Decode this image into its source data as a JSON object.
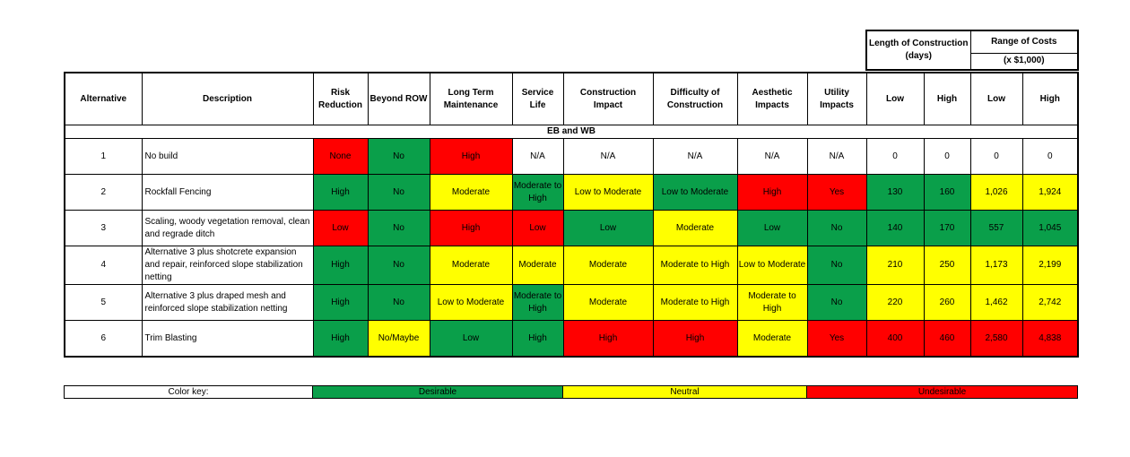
{
  "colors": {
    "g": "#0a9f4a",
    "y": "#ffff00",
    "r": "#ff0000",
    "w": "#ffffff"
  },
  "top": {
    "length": "Length of Construction (days)",
    "costs": "Range of Costs",
    "costs_unit": "(x $1,000)"
  },
  "headers": [
    "Alternative",
    "Description",
    "Risk Reduction",
    "Beyond ROW",
    "Long Term Maintenance",
    "Service Life",
    "Construction Impact",
    "Difficulty of Construction",
    "Aesthetic Impacts",
    "Utility Impacts",
    "Low",
    "High",
    "Low",
    "High"
  ],
  "section": "EB and WB",
  "rows": [
    {
      "cells": [
        "1",
        "No build",
        "None",
        "No",
        "High",
        "N/A",
        "N/A",
        "N/A",
        "N/A",
        "N/A",
        "0",
        "0",
        "0",
        "0"
      ],
      "colors": [
        "w",
        "w",
        "r",
        "g",
        "r",
        "w",
        "w",
        "w",
        "w",
        "w",
        "w",
        "w",
        "w",
        "w"
      ]
    },
    {
      "cells": [
        "2",
        "Rockfall Fencing",
        "High",
        "No",
        "Moderate",
        "Moderate to High",
        "Low to Moderate",
        "Low to Moderate",
        "High",
        "Yes",
        "130",
        "160",
        "1,026",
        "1,924"
      ],
      "colors": [
        "w",
        "w",
        "g",
        "g",
        "y",
        "g",
        "y",
        "g",
        "r",
        "r",
        "g",
        "g",
        "y",
        "y"
      ]
    },
    {
      "cells": [
        "3",
        "Scaling, woody vegetation removal, clean and regrade ditch",
        "Low",
        "No",
        "High",
        "Low",
        "Low",
        "Moderate",
        "Low",
        "No",
        "140",
        "170",
        "557",
        "1,045"
      ],
      "colors": [
        "w",
        "w",
        "r",
        "g",
        "r",
        "r",
        "g",
        "y",
        "g",
        "g",
        "g",
        "g",
        "g",
        "g"
      ]
    },
    {
      "cells": [
        "4",
        "Alternative 3 plus shotcrete expansion and repair, reinforced slope stabilization netting",
        "High",
        "No",
        "Moderate",
        "Moderate",
        "Moderate",
        "Moderate to High",
        "Low to Moderate",
        "No",
        "210",
        "250",
        "1,173",
        "2,199"
      ],
      "colors": [
        "w",
        "w",
        "g",
        "g",
        "y",
        "y",
        "y",
        "y",
        "y",
        "g",
        "y",
        "y",
        "y",
        "y"
      ]
    },
    {
      "cells": [
        "5",
        "Alternative 3 plus draped mesh and reinforced slope stabilization netting",
        "High",
        "No",
        "Low to Moderate",
        "Moderate to High",
        "Moderate",
        "Moderate to High",
        "Moderate to High",
        "No",
        "220",
        "260",
        "1,462",
        "2,742"
      ],
      "colors": [
        "w",
        "w",
        "g",
        "g",
        "y",
        "g",
        "y",
        "y",
        "y",
        "g",
        "y",
        "y",
        "y",
        "y"
      ]
    },
    {
      "cells": [
        "6",
        "Trim Blasting",
        "High",
        "No/Maybe",
        "Low",
        "High",
        "High",
        "High",
        "Moderate",
        "Yes",
        "400",
        "460",
        "2,580",
        "4,838"
      ],
      "colors": [
        "w",
        "w",
        "g",
        "y",
        "g",
        "g",
        "r",
        "r",
        "y",
        "r",
        "r",
        "r",
        "r",
        "r"
      ]
    }
  ],
  "key": {
    "label": "Color key:",
    "desirable": "Desirable",
    "neutral": "Neutral",
    "undesirable": "Undesirable"
  }
}
